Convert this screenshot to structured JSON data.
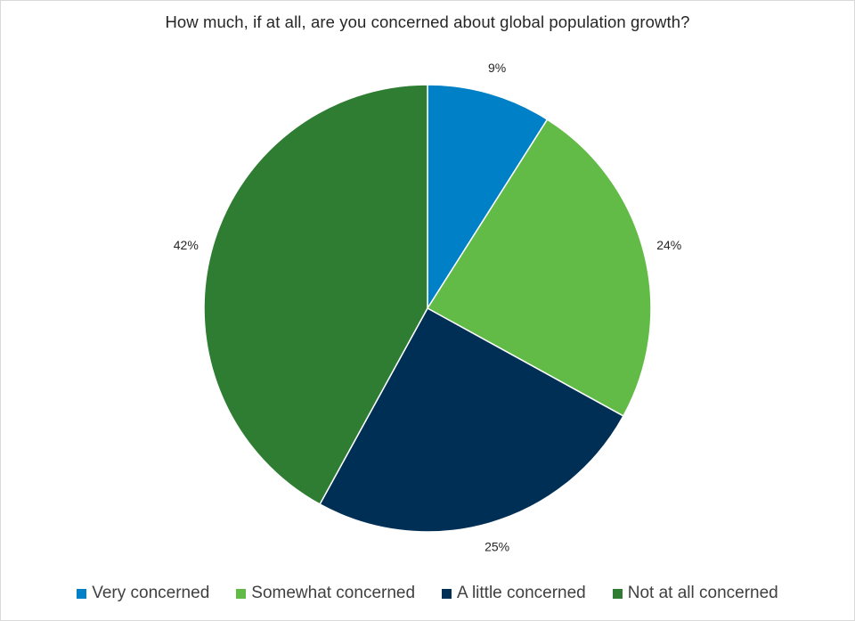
{
  "chart_data": {
    "type": "pie",
    "title": "How much, if at all, are you concerned about global population growth?",
    "categories": [
      "Very concerned",
      "Somewhat concerned",
      "A little concerned",
      "Not at all concerned"
    ],
    "values": [
      9,
      24,
      25,
      42
    ],
    "data_labels": [
      "9%",
      "24%",
      "25%",
      "42%"
    ],
    "colors": [
      "#0080c6",
      "#62bb46",
      "#002f56",
      "#2e7d32"
    ],
    "legend_position": "bottom",
    "start_angle": "12 o'clock",
    "direction": "clockwise"
  }
}
